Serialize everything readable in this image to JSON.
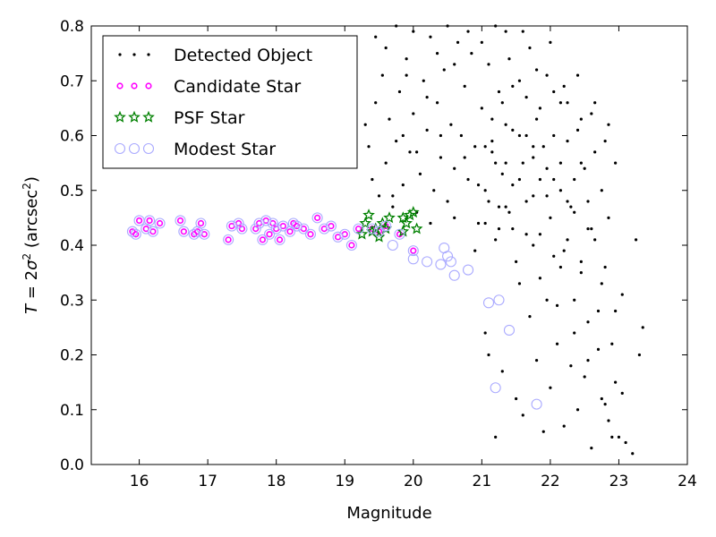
{
  "chart_data": {
    "type": "scatter",
    "xlabel": "Magnitude",
    "ylabel_parts": {
      "pre": "T",
      "eq": " = 2",
      "sigma": "σ",
      "sup": "2",
      "post": " (arcsec",
      "post_sup": "2",
      "close": ")"
    },
    "xlim": [
      15.3,
      24
    ],
    "ylim": [
      0,
      0.8
    ],
    "x_ticks": [
      16,
      17,
      18,
      19,
      20,
      21,
      22,
      23,
      24
    ],
    "y_ticks": [
      0.0,
      0.1,
      0.2,
      0.3,
      0.4,
      0.5,
      0.6,
      0.7,
      0.8
    ],
    "x_tick_labels": [
      "16",
      "17",
      "18",
      "19",
      "20",
      "21",
      "22",
      "23",
      "24"
    ],
    "y_tick_labels": [
      "0.0",
      "0.1",
      "0.2",
      "0.3",
      "0.4",
      "0.5",
      "0.6",
      "0.7",
      "0.8"
    ],
    "grid": false,
    "legend_position": "top-left",
    "series": [
      {
        "name": "Detected Object",
        "marker": "dot",
        "color": "#000000",
        "points": [
          [
            19.3,
            0.62
          ],
          [
            19.35,
            0.58
          ],
          [
            19.4,
            0.52
          ],
          [
            19.45,
            0.66
          ],
          [
            19.5,
            0.49
          ],
          [
            19.55,
            0.71
          ],
          [
            19.6,
            0.55
          ],
          [
            19.65,
            0.63
          ],
          [
            19.7,
            0.47
          ],
          [
            19.75,
            0.59
          ],
          [
            19.8,
            0.68
          ],
          [
            19.85,
            0.51
          ],
          [
            19.9,
            0.74
          ],
          [
            19.95,
            0.57
          ],
          [
            20.0,
            0.64
          ],
          [
            20.05,
            0.46
          ],
          [
            20.1,
            0.53
          ],
          [
            20.15,
            0.7
          ],
          [
            20.2,
            0.61
          ],
          [
            20.25,
            0.78
          ],
          [
            20.3,
            0.5
          ],
          [
            20.35,
            0.66
          ],
          [
            20.4,
            0.56
          ],
          [
            20.45,
            0.72
          ],
          [
            20.5,
            0.48
          ],
          [
            20.55,
            0.62
          ],
          [
            20.6,
            0.54
          ],
          [
            20.65,
            0.77
          ],
          [
            20.7,
            0.6
          ],
          [
            20.75,
            0.69
          ],
          [
            20.8,
            0.52
          ],
          [
            20.85,
            0.75
          ],
          [
            20.9,
            0.58
          ],
          [
            20.95,
            0.44
          ],
          [
            21.0,
            0.65
          ],
          [
            21.05,
            0.5
          ],
          [
            21.1,
            0.73
          ],
          [
            21.15,
            0.57
          ],
          [
            21.2,
            0.41
          ],
          [
            21.25,
            0.68
          ],
          [
            21.3,
            0.53
          ],
          [
            21.35,
            0.79
          ],
          [
            21.4,
            0.46
          ],
          [
            21.45,
            0.61
          ],
          [
            21.5,
            0.37
          ],
          [
            21.55,
            0.7
          ],
          [
            21.6,
            0.55
          ],
          [
            21.65,
            0.42
          ],
          [
            21.7,
            0.76
          ],
          [
            21.75,
            0.49
          ],
          [
            21.8,
            0.63
          ],
          [
            21.85,
            0.34
          ],
          [
            21.9,
            0.58
          ],
          [
            21.95,
            0.71
          ],
          [
            22.0,
            0.45
          ],
          [
            22.05,
            0.52
          ],
          [
            22.1,
            0.29
          ],
          [
            22.15,
            0.66
          ],
          [
            22.2,
            0.39
          ],
          [
            22.25,
            0.59
          ],
          [
            22.3,
            0.47
          ],
          [
            22.35,
            0.24
          ],
          [
            22.4,
            0.61
          ],
          [
            22.45,
            0.35
          ],
          [
            22.5,
            0.54
          ],
          [
            22.55,
            0.19
          ],
          [
            22.6,
            0.43
          ],
          [
            22.65,
            0.66
          ],
          [
            22.7,
            0.28
          ],
          [
            22.75,
            0.12
          ],
          [
            22.8,
            0.36
          ],
          [
            22.85,
            0.08
          ],
          [
            22.9,
            0.22
          ],
          [
            22.95,
            0.15
          ],
          [
            23.0,
            0.05
          ],
          [
            23.05,
            0.31
          ],
          [
            23.1,
            0.04
          ],
          [
            23.2,
            0.02
          ],
          [
            23.25,
            0.41
          ],
          [
            23.3,
            0.2
          ],
          [
            23.35,
            0.25
          ],
          [
            19.45,
            0.78
          ],
          [
            19.6,
            0.76
          ],
          [
            19.75,
            0.8
          ],
          [
            19.9,
            0.71
          ],
          [
            20.0,
            0.79
          ],
          [
            20.2,
            0.67
          ],
          [
            20.35,
            0.75
          ],
          [
            20.5,
            0.8
          ],
          [
            20.6,
            0.73
          ],
          [
            20.8,
            0.79
          ],
          [
            21.0,
            0.77
          ],
          [
            21.2,
            0.8
          ],
          [
            21.4,
            0.74
          ],
          [
            21.6,
            0.79
          ],
          [
            21.8,
            0.72
          ],
          [
            22.0,
            0.77
          ],
          [
            22.2,
            0.69
          ],
          [
            22.4,
            0.71
          ],
          [
            22.6,
            0.64
          ],
          [
            22.8,
            0.59
          ],
          [
            19.7,
            0.49
          ],
          [
            19.85,
            0.6
          ],
          [
            20.05,
            0.57
          ],
          [
            20.25,
            0.44
          ],
          [
            20.4,
            0.6
          ],
          [
            20.6,
            0.45
          ],
          [
            20.75,
            0.56
          ],
          [
            20.9,
            0.39
          ],
          [
            21.05,
            0.58
          ],
          [
            21.25,
            0.43
          ],
          [
            21.35,
            0.62
          ],
          [
            21.45,
            0.51
          ],
          [
            21.55,
            0.33
          ],
          [
            21.65,
            0.6
          ],
          [
            21.75,
            0.4
          ],
          [
            21.85,
            0.52
          ],
          [
            21.95,
            0.3
          ],
          [
            22.05,
            0.6
          ],
          [
            22.15,
            0.36
          ],
          [
            22.25,
            0.48
          ],
          [
            22.35,
            0.3
          ],
          [
            22.45,
            0.55
          ],
          [
            22.55,
            0.26
          ],
          [
            22.65,
            0.41
          ],
          [
            22.75,
            0.33
          ],
          [
            22.85,
            0.45
          ],
          [
            22.95,
            0.28
          ],
          [
            21.05,
            0.24
          ],
          [
            21.1,
            0.2
          ],
          [
            21.2,
            0.05
          ],
          [
            21.3,
            0.17
          ],
          [
            21.5,
            0.12
          ],
          [
            21.6,
            0.09
          ],
          [
            21.7,
            0.27
          ],
          [
            21.8,
            0.19
          ],
          [
            21.9,
            0.06
          ],
          [
            22.0,
            0.14
          ],
          [
            22.1,
            0.22
          ],
          [
            22.2,
            0.07
          ],
          [
            22.3,
            0.18
          ],
          [
            22.4,
            0.1
          ],
          [
            22.5,
            0.16
          ],
          [
            22.6,
            0.03
          ],
          [
            22.7,
            0.21
          ],
          [
            22.8,
            0.11
          ],
          [
            22.9,
            0.05
          ],
          [
            23.05,
            0.13
          ],
          [
            21.1,
            0.48
          ],
          [
            21.15,
            0.63
          ],
          [
            21.2,
            0.55
          ],
          [
            21.3,
            0.66
          ],
          [
            21.35,
            0.47
          ],
          [
            21.45,
            0.69
          ],
          [
            21.55,
            0.52
          ],
          [
            21.65,
            0.67
          ],
          [
            21.75,
            0.58
          ],
          [
            21.85,
            0.65
          ],
          [
            21.95,
            0.49
          ],
          [
            22.05,
            0.68
          ],
          [
            22.15,
            0.55
          ],
          [
            22.25,
            0.66
          ],
          [
            22.35,
            0.52
          ],
          [
            22.45,
            0.63
          ],
          [
            22.55,
            0.48
          ],
          [
            22.65,
            0.57
          ],
          [
            22.75,
            0.5
          ],
          [
            22.85,
            0.62
          ],
          [
            22.95,
            0.55
          ],
          [
            20.95,
            0.51
          ],
          [
            21.05,
            0.44
          ],
          [
            21.15,
            0.59
          ],
          [
            21.25,
            0.47
          ],
          [
            21.35,
            0.55
          ],
          [
            21.45,
            0.43
          ],
          [
            21.55,
            0.6
          ],
          [
            21.65,
            0.48
          ],
          [
            21.75,
            0.56
          ],
          [
            21.85,
            0.42
          ],
          [
            21.95,
            0.54
          ],
          [
            22.05,
            0.38
          ],
          [
            22.15,
            0.5
          ],
          [
            22.25,
            0.41
          ],
          [
            22.35,
            0.46
          ],
          [
            22.45,
            0.37
          ],
          [
            22.55,
            0.43
          ]
        ]
      },
      {
        "name": "Candidate Star",
        "marker": "small-circle",
        "color": "#ff00ff",
        "points": [
          [
            15.9,
            0.425
          ],
          [
            15.95,
            0.42
          ],
          [
            16.0,
            0.445
          ],
          [
            16.1,
            0.43
          ],
          [
            16.15,
            0.445
          ],
          [
            16.2,
            0.425
          ],
          [
            16.3,
            0.44
          ],
          [
            16.6,
            0.445
          ],
          [
            16.65,
            0.425
          ],
          [
            16.8,
            0.42
          ],
          [
            16.85,
            0.425
          ],
          [
            16.9,
            0.44
          ],
          [
            16.95,
            0.42
          ],
          [
            17.3,
            0.41
          ],
          [
            17.35,
            0.435
          ],
          [
            17.45,
            0.44
          ],
          [
            17.5,
            0.43
          ],
          [
            17.7,
            0.43
          ],
          [
            17.75,
            0.44
          ],
          [
            17.8,
            0.41
          ],
          [
            17.85,
            0.445
          ],
          [
            17.9,
            0.42
          ],
          [
            17.95,
            0.44
          ],
          [
            18.0,
            0.43
          ],
          [
            18.05,
            0.41
          ],
          [
            18.1,
            0.435
          ],
          [
            18.2,
            0.425
          ],
          [
            18.25,
            0.44
          ],
          [
            18.3,
            0.435
          ],
          [
            18.4,
            0.43
          ],
          [
            18.5,
            0.42
          ],
          [
            18.6,
            0.45
          ],
          [
            18.7,
            0.43
          ],
          [
            18.8,
            0.435
          ],
          [
            18.9,
            0.415
          ],
          [
            19.0,
            0.42
          ],
          [
            19.1,
            0.4
          ],
          [
            19.2,
            0.43
          ],
          [
            19.4,
            0.43
          ],
          [
            19.5,
            0.425
          ],
          [
            19.6,
            0.435
          ],
          [
            19.8,
            0.42
          ],
          [
            20.0,
            0.39
          ]
        ]
      },
      {
        "name": "PSF Star",
        "marker": "star",
        "color": "#008000",
        "points": [
          [
            19.25,
            0.42
          ],
          [
            19.3,
            0.44
          ],
          [
            19.35,
            0.455
          ],
          [
            19.4,
            0.425
          ],
          [
            19.45,
            0.43
          ],
          [
            19.5,
            0.415
          ],
          [
            19.55,
            0.44
          ],
          [
            19.6,
            0.43
          ],
          [
            19.65,
            0.45
          ],
          [
            19.85,
            0.425
          ],
          [
            19.9,
            0.44
          ],
          [
            19.95,
            0.455
          ],
          [
            20.0,
            0.46
          ],
          [
            20.05,
            0.43
          ],
          [
            19.85,
            0.45
          ]
        ]
      },
      {
        "name": "Modest Star",
        "marker": "ring",
        "color": "#aaaaff",
        "points": [
          [
            15.9,
            0.425
          ],
          [
            15.95,
            0.42
          ],
          [
            16.0,
            0.445
          ],
          [
            16.1,
            0.43
          ],
          [
            16.15,
            0.445
          ],
          [
            16.2,
            0.425
          ],
          [
            16.3,
            0.44
          ],
          [
            16.6,
            0.445
          ],
          [
            16.65,
            0.425
          ],
          [
            16.8,
            0.42
          ],
          [
            16.85,
            0.425
          ],
          [
            16.9,
            0.44
          ],
          [
            16.95,
            0.42
          ],
          [
            17.3,
            0.41
          ],
          [
            17.35,
            0.435
          ],
          [
            17.45,
            0.44
          ],
          [
            17.5,
            0.43
          ],
          [
            17.7,
            0.43
          ],
          [
            17.75,
            0.44
          ],
          [
            17.8,
            0.41
          ],
          [
            17.85,
            0.445
          ],
          [
            17.9,
            0.42
          ],
          [
            17.95,
            0.44
          ],
          [
            18.0,
            0.43
          ],
          [
            18.05,
            0.41
          ],
          [
            18.1,
            0.435
          ],
          [
            18.2,
            0.425
          ],
          [
            18.25,
            0.44
          ],
          [
            18.3,
            0.435
          ],
          [
            18.4,
            0.43
          ],
          [
            18.5,
            0.42
          ],
          [
            18.6,
            0.45
          ],
          [
            18.7,
            0.43
          ],
          [
            18.8,
            0.435
          ],
          [
            18.9,
            0.415
          ],
          [
            19.0,
            0.42
          ],
          [
            19.1,
            0.4
          ],
          [
            19.2,
            0.43
          ],
          [
            19.4,
            0.43
          ],
          [
            19.5,
            0.425
          ],
          [
            19.6,
            0.435
          ],
          [
            19.8,
            0.42
          ],
          [
            20.0,
            0.39
          ],
          [
            19.7,
            0.4
          ],
          [
            20.0,
            0.375
          ],
          [
            20.2,
            0.37
          ],
          [
            20.4,
            0.365
          ],
          [
            20.45,
            0.395
          ],
          [
            20.5,
            0.38
          ],
          [
            20.55,
            0.37
          ],
          [
            20.6,
            0.345
          ],
          [
            20.8,
            0.355
          ],
          [
            21.1,
            0.295
          ],
          [
            21.25,
            0.3
          ],
          [
            21.4,
            0.245
          ],
          [
            21.2,
            0.14
          ],
          [
            21.8,
            0.11
          ]
        ]
      }
    ]
  }
}
